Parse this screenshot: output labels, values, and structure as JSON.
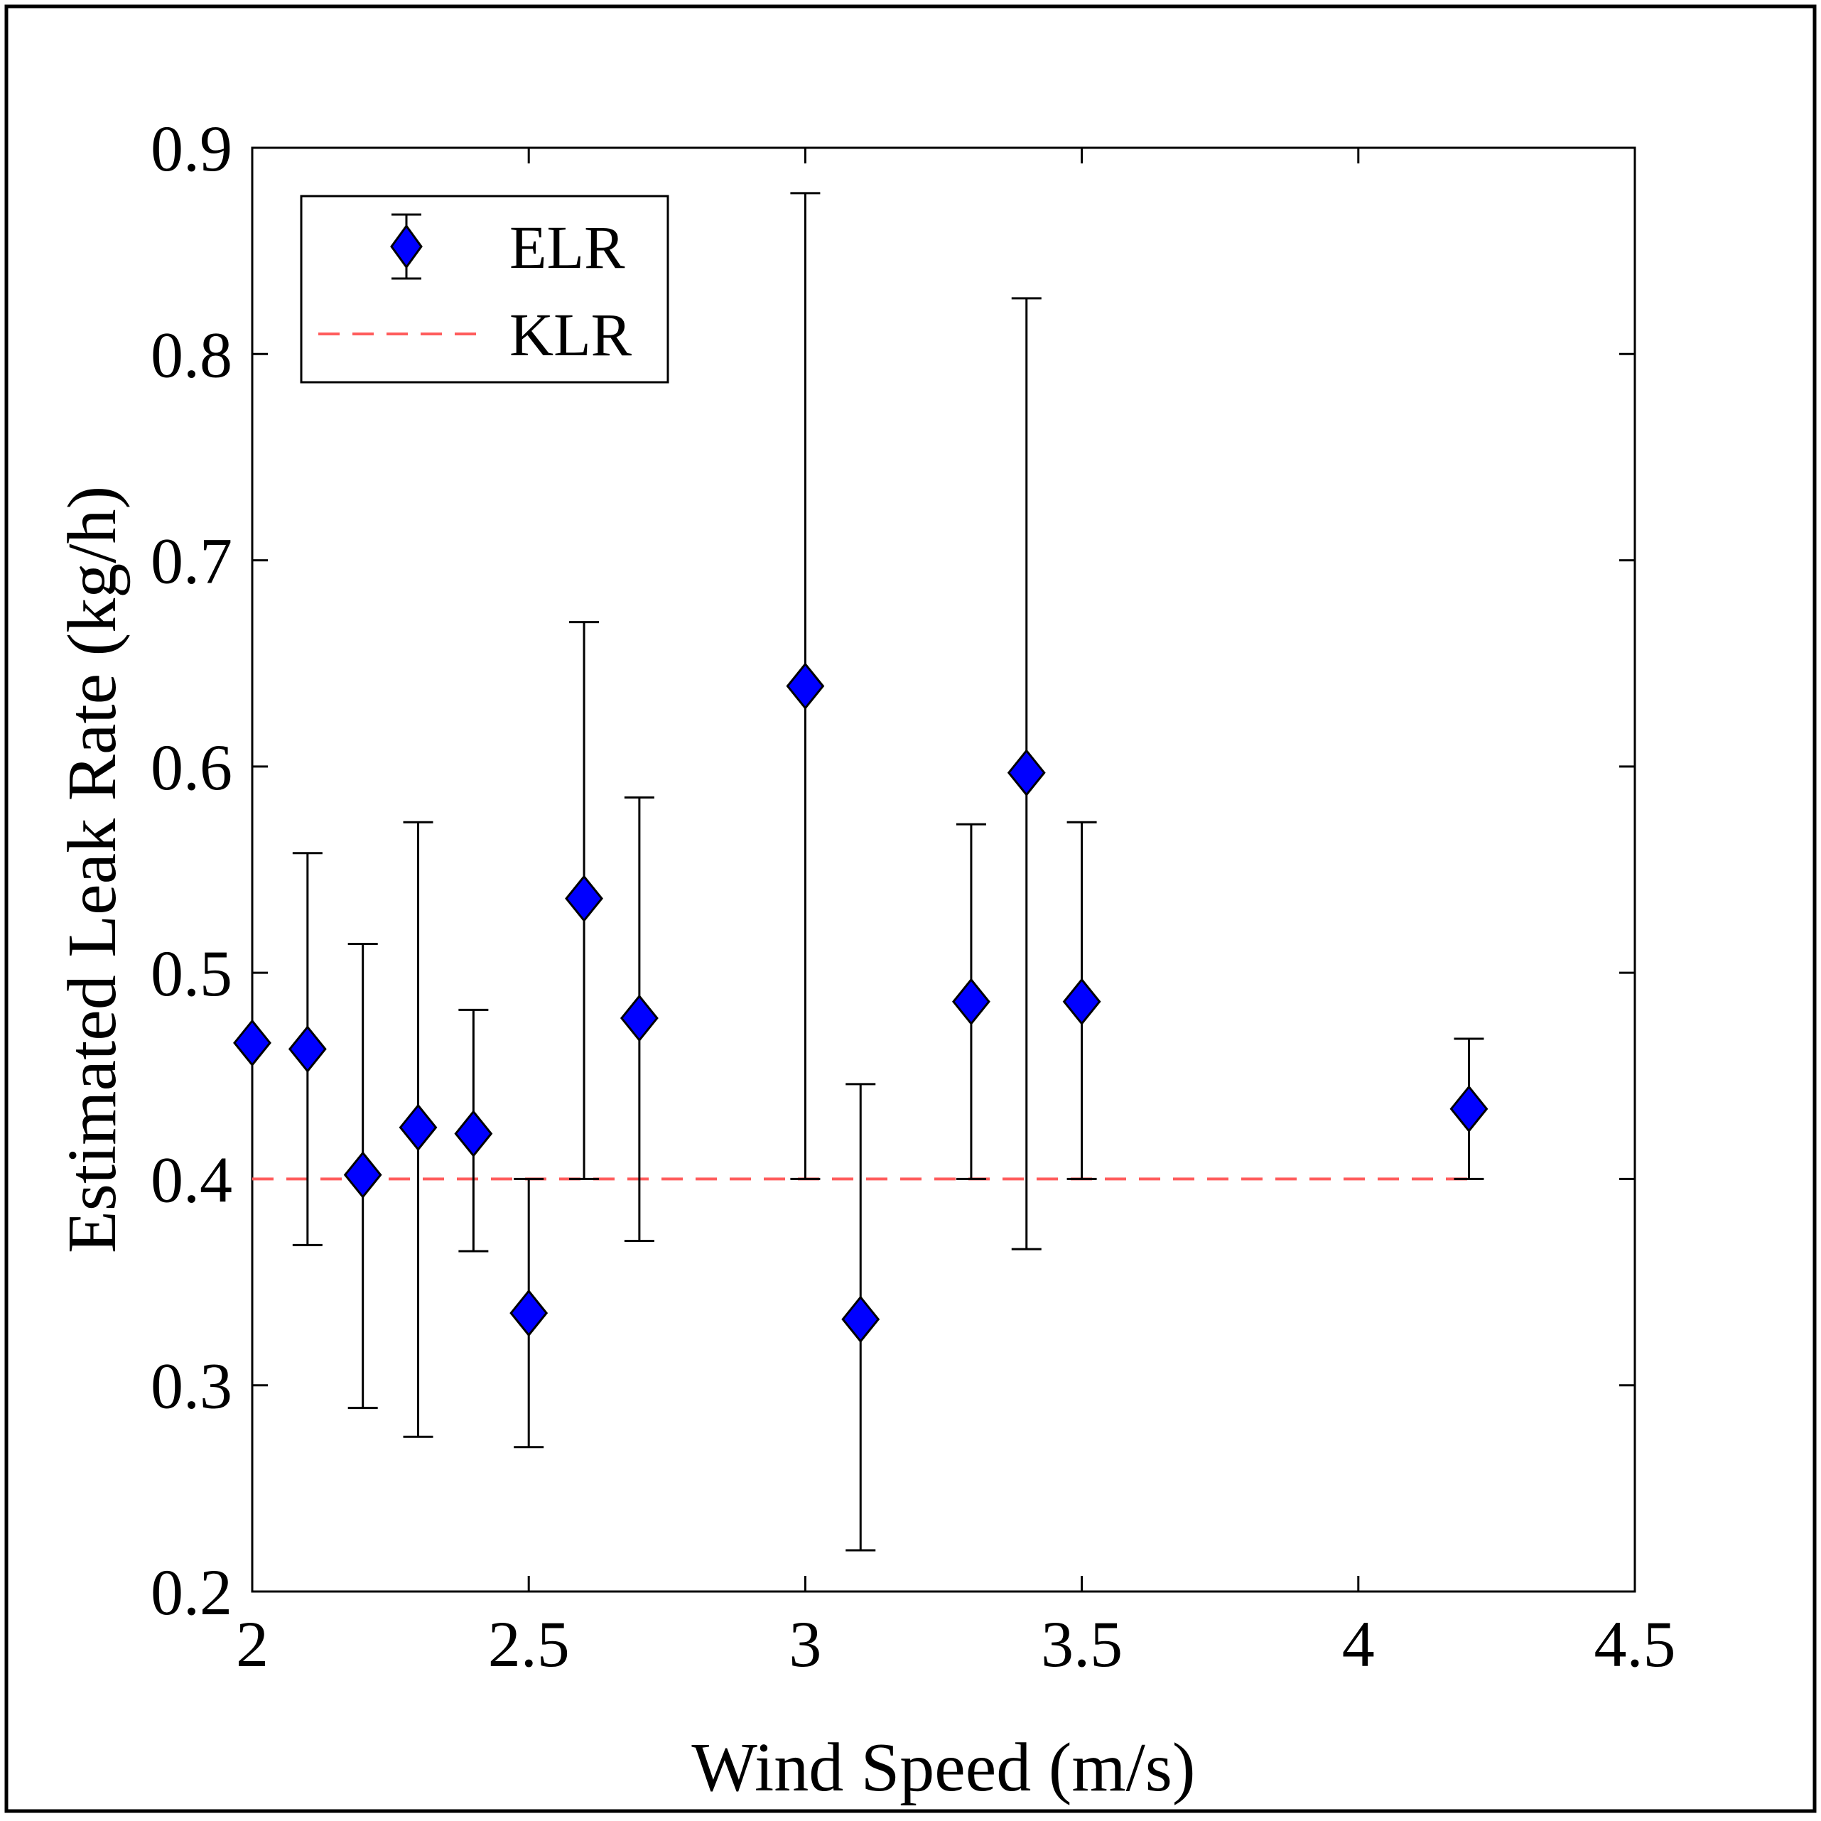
{
  "chart_data": {
    "type": "scatter",
    "title": "",
    "xlabel": "Wind Speed (m/s)",
    "ylabel": "Estimated Leak Rate (kg/h)",
    "xlim": [
      2,
      4.5
    ],
    "ylim": [
      0.2,
      0.9
    ],
    "xticks": [
      2,
      2.5,
      3,
      3.5,
      4,
      4.5
    ],
    "xtick_labels": [
      "2",
      "2.5",
      "3",
      "3.5",
      "4",
      "4.5"
    ],
    "yticks": [
      0.2,
      0.3,
      0.4,
      0.5,
      0.6,
      0.7,
      0.8,
      0.9
    ],
    "ytick_labels": [
      "0.2",
      "0.3",
      "0.4",
      "0.5",
      "0.6",
      "0.7",
      "0.8",
      "0.9"
    ],
    "grid": false,
    "legend_position": "top-left",
    "series": [
      {
        "name": "ELR",
        "kind": "errorbar",
        "marker": "diamond",
        "color": "#0000ff",
        "edge_color": "#000000",
        "points": [
          {
            "x": 2.0,
            "y": 0.466,
            "low": 0.466,
            "high": 0.466
          },
          {
            "x": 2.1,
            "y": 0.463,
            "low": 0.368,
            "high": 0.558
          },
          {
            "x": 2.2,
            "y": 0.402,
            "low": 0.289,
            "high": 0.514
          },
          {
            "x": 2.3,
            "y": 0.425,
            "low": 0.275,
            "high": 0.573
          },
          {
            "x": 2.4,
            "y": 0.422,
            "low": 0.365,
            "high": 0.482
          },
          {
            "x": 2.5,
            "y": 0.335,
            "low": 0.27,
            "high": 0.4
          },
          {
            "x": 2.6,
            "y": 0.536,
            "low": 0.4,
            "high": 0.67
          },
          {
            "x": 2.7,
            "y": 0.478,
            "low": 0.37,
            "high": 0.585
          },
          {
            "x": 3.0,
            "y": 0.639,
            "low": 0.4,
            "high": 0.878
          },
          {
            "x": 3.1,
            "y": 0.332,
            "low": 0.22,
            "high": 0.446
          },
          {
            "x": 3.3,
            "y": 0.486,
            "low": 0.4,
            "high": 0.572
          },
          {
            "x": 3.4,
            "y": 0.597,
            "low": 0.366,
            "high": 0.827
          },
          {
            "x": 3.5,
            "y": 0.486,
            "low": 0.4,
            "high": 0.573
          },
          {
            "x": 4.2,
            "y": 0.434,
            "low": 0.4,
            "high": 0.468
          }
        ]
      },
      {
        "name": "KLR",
        "kind": "line",
        "linestyle": "dashed",
        "color": "#ff5c5c",
        "x": [
          2.0,
          4.2
        ],
        "y": [
          0.4,
          0.4
        ]
      }
    ]
  }
}
